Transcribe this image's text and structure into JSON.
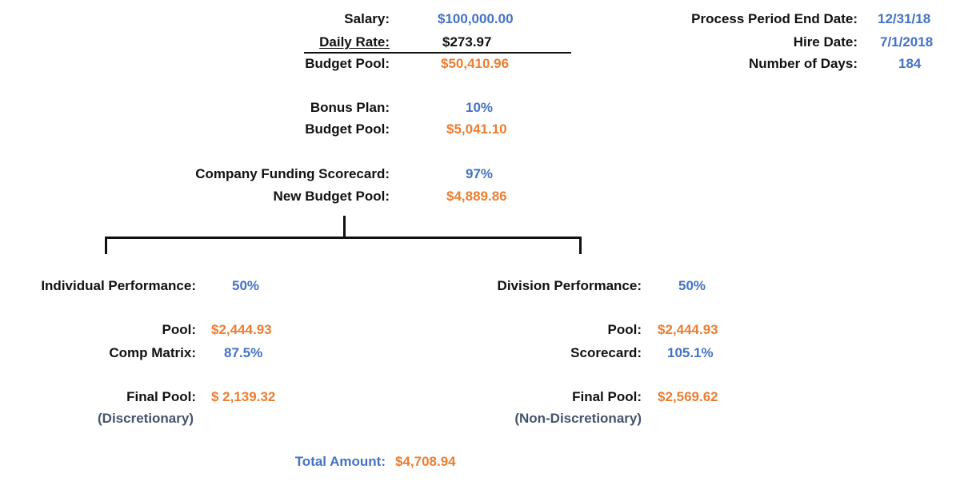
{
  "colors": {
    "input_blue": "#4472c4",
    "calc_orange": "#ed7d31",
    "note_slate": "#44546a",
    "text": "#111111"
  },
  "top": {
    "salary_label": "Salary:",
    "salary_value": "$100,000.00",
    "daily_rate_label": "Daily Rate:",
    "daily_rate_value": "$273.97",
    "budget_pool_label": "Budget Pool:",
    "budget_pool_value": "$50,410.96",
    "bonus_plan_label": "Bonus Plan:",
    "bonus_plan_value": "10%",
    "bonus_budget_pool_label": "Budget Pool:",
    "bonus_budget_pool_value": "$5,041.10",
    "scorecard_label": "Company Funding Scorecard:",
    "scorecard_value": "97%",
    "new_budget_pool_label": "New Budget Pool:",
    "new_budget_pool_value": "$4,889.86"
  },
  "dates": {
    "period_end_label": "Process Period End Date:",
    "period_end_value": "12/31/18",
    "hire_date_label": "Hire Date:",
    "hire_date_value": "7/1/2018",
    "days_label": "Number of Days:",
    "days_value": "184"
  },
  "individual": {
    "perf_label": "Individual Performance:",
    "perf_value": "50%",
    "pool_label": "Pool:",
    "pool_value": "$2,444.93",
    "matrix_label": "Comp Matrix:",
    "matrix_value": "87.5%",
    "final_label": "Final Pool:",
    "final_value": "$ 2,139.32",
    "note": "(Discretionary)"
  },
  "division": {
    "perf_label": "Division Performance:",
    "perf_value": "50%",
    "pool_label": "Pool:",
    "pool_value": "$2,444.93",
    "scorecard_label": "Scorecard:",
    "scorecard_value": "105.1%",
    "final_label": "Final Pool:",
    "final_value": "$2,569.62",
    "note": "(Non-Discretionary)"
  },
  "total": {
    "label": "Total Amount:",
    "value": "$4,708.94"
  }
}
